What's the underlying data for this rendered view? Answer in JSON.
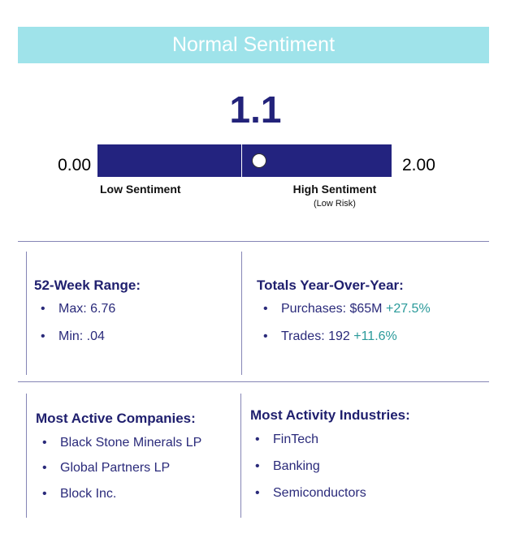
{
  "header": {
    "title": "Normal Sentiment"
  },
  "gauge": {
    "value": 1.1,
    "min": {
      "value": 0,
      "label": "0.00"
    },
    "max": {
      "value": 2,
      "label": "2.00"
    },
    "low_label": "Low Sentiment",
    "high_label": "High Sentiment",
    "high_note": "(Low Risk)"
  },
  "sections": [
    {
      "title": "52-Week Range:",
      "items": [
        {
          "text": "Max: 6.76"
        },
        {
          "text": "Min: .04"
        }
      ]
    },
    {
      "title": "Totals Year-Over-Year:",
      "items": [
        {
          "text": "Purchases: $65M",
          "change": "+27.5%"
        },
        {
          "text": "Trades: 192",
          "change": "+11.6%"
        }
      ]
    },
    {
      "title": "Most Active Companies:",
      "items": [
        {
          "text": "Black Stone Minerals LP"
        },
        {
          "text": "Global Partners LP"
        },
        {
          "text": "Block Inc."
        }
      ]
    },
    {
      "title": "Most Activity Industries:",
      "items": [
        {
          "text": "FinTech"
        },
        {
          "text": "Banking"
        },
        {
          "text": "Semiconductors"
        }
      ]
    }
  ]
}
